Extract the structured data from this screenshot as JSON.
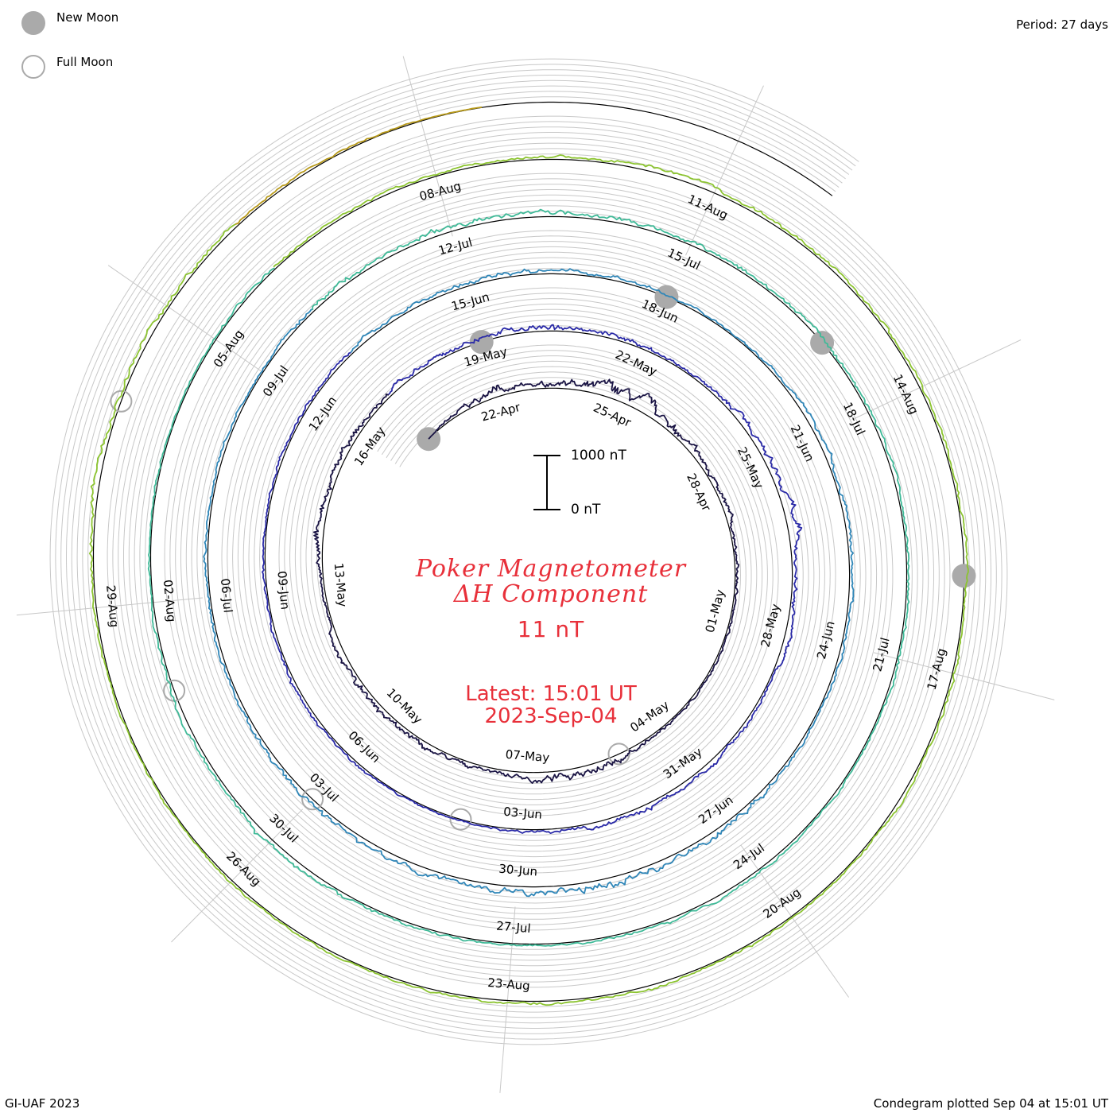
{
  "legend": {
    "new_moon_label": "New Moon",
    "full_moon_label": "Full Moon",
    "new_moon_color": "#aaaaaa",
    "full_moon_color": "#aaaaaa"
  },
  "header": {
    "period": "Period: 27 days"
  },
  "footer": {
    "credit": "GI-UAF 2023",
    "plotted": "Condegram plotted Sep 04 at 15:01 UT"
  },
  "center": {
    "title_line1": "Poker Magnetometer",
    "title_line2": "ΔH Component",
    "value": "11 nT",
    "latest_line1": "Latest: 15:01 UT",
    "latest_line2": "2023-Sep-04",
    "text_color": "#e8303a"
  },
  "scale_bar": {
    "top_label": "1000 nT",
    "bottom_label": "0 nT"
  },
  "chart_data": {
    "type": "line",
    "title": "Poker Magnetometer ΔH Component",
    "layout": "spiral condegram",
    "period_days": 27,
    "start_date": "2023-04-20",
    "end": "2023-09-04 15:01 UT",
    "units": "nT",
    "scale_bar_nT": 1000,
    "current_value_nT": 11,
    "grid": true,
    "series": [
      {
        "days": [
          0,
          27
        ],
        "color": "#1a1444"
      },
      {
        "days": [
          27,
          54
        ],
        "color": "#2a2aa8"
      },
      {
        "days": [
          54,
          81
        ],
        "color": "#2f86b8"
      },
      {
        "days": [
          81,
          108
        ],
        "color": "#3fba98"
      },
      {
        "days": [
          108,
          135
        ],
        "color": "#8cc430"
      },
      {
        "days": [
          135,
          137.6
        ],
        "color": "#b89a1a"
      }
    ],
    "date_labels": [
      "22-Apr",
      "25-Apr",
      "28-Apr",
      "01-May",
      "04-May",
      "07-May",
      "10-May",
      "13-May",
      "16-May",
      "19-May",
      "22-May",
      "25-May",
      "28-May",
      "31-May",
      "03-Jun",
      "06-Jun",
      "09-Jun",
      "12-Jun",
      "15-Jun",
      "18-Jun",
      "21-Jun",
      "24-Jun",
      "27-Jun",
      "30-Jun",
      "03-Jul",
      "06-Jul",
      "09-Jul",
      "12-Jul",
      "15-Jul",
      "18-Jul",
      "21-Jul",
      "24-Jul",
      "27-Jul",
      "30-Jul",
      "02-Aug",
      "05-Aug",
      "08-Aug",
      "11-Aug",
      "14-Aug",
      "17-Aug",
      "20-Aug",
      "23-Aug",
      "26-Aug",
      "29-Aug"
    ],
    "new_moons": [
      "2023-04-20",
      "2023-05-19",
      "2023-06-18",
      "2023-07-17",
      "2023-08-16"
    ],
    "full_moons": [
      "2023-05-05",
      "2023-06-04",
      "2023-07-03",
      "2023-08-01",
      "2023-08-31"
    ],
    "disturbance_profile_nT": [
      [
        0,
        0
      ],
      [
        2,
        250
      ],
      [
        3,
        140
      ],
      [
        5,
        380
      ],
      [
        7,
        180
      ],
      [
        9,
        120
      ],
      [
        12,
        60
      ],
      [
        14,
        100
      ],
      [
        16,
        310
      ],
      [
        18,
        130
      ],
      [
        21,
        200
      ],
      [
        23,
        90
      ],
      [
        24,
        310
      ],
      [
        25,
        160
      ],
      [
        27,
        180
      ],
      [
        28,
        120
      ],
      [
        30,
        230
      ],
      [
        33,
        90
      ],
      [
        36,
        280
      ],
      [
        38,
        120
      ],
      [
        40,
        80
      ],
      [
        42,
        180
      ],
      [
        45,
        60
      ],
      [
        48,
        110
      ],
      [
        51,
        70
      ],
      [
        54,
        120
      ],
      [
        57,
        150
      ],
      [
        60,
        60
      ],
      [
        62,
        120
      ],
      [
        64,
        140
      ],
      [
        66,
        90
      ],
      [
        68,
        180
      ],
      [
        70,
        330
      ],
      [
        73,
        210
      ],
      [
        76,
        120
      ],
      [
        78,
        100
      ],
      [
        80,
        80
      ],
      [
        82,
        220
      ],
      [
        84,
        170
      ],
      [
        87,
        140
      ],
      [
        90,
        120
      ],
      [
        92,
        100
      ],
      [
        94,
        80
      ],
      [
        96,
        100
      ],
      [
        98,
        80
      ],
      [
        101,
        150
      ],
      [
        104,
        80
      ],
      [
        106,
        60
      ],
      [
        108,
        110
      ],
      [
        110,
        90
      ],
      [
        112,
        120
      ],
      [
        115,
        130
      ],
      [
        117,
        90
      ],
      [
        119,
        110
      ],
      [
        121,
        70
      ],
      [
        123,
        100
      ],
      [
        125,
        110
      ],
      [
        127,
        80
      ],
      [
        130,
        60
      ],
      [
        132,
        130
      ],
      [
        134,
        160
      ],
      [
        135,
        120
      ],
      [
        136,
        80
      ],
      [
        137.6,
        11
      ]
    ]
  }
}
